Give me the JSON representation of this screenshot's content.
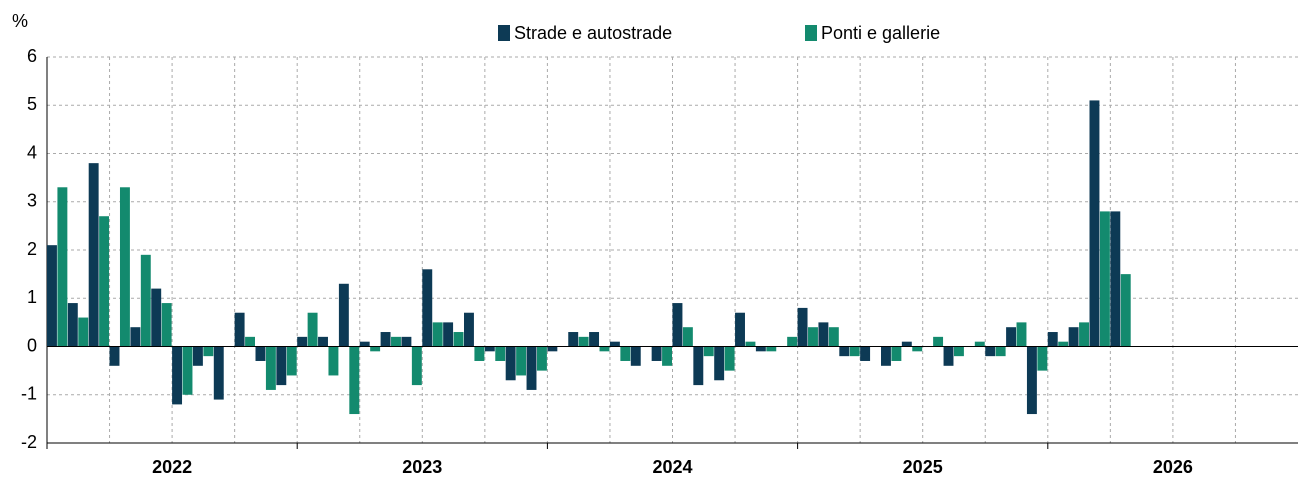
{
  "chart_data": {
    "type": "bar",
    "y_label": "%",
    "year_labels": [
      "2022",
      "2023",
      "2024",
      "2025",
      "2026"
    ],
    "categories": [
      null,
      null,
      null,
      null,
      null,
      null,
      null,
      null,
      null,
      null,
      null,
      null,
      null,
      null,
      null,
      null,
      null,
      null,
      null,
      null,
      null,
      null,
      null,
      null,
      null,
      null,
      null,
      null,
      null,
      null,
      null,
      null,
      null,
      null,
      null,
      null,
      null,
      null,
      null,
      null,
      null,
      null,
      null,
      null,
      null,
      null,
      null,
      null,
      null,
      null,
      null,
      null,
      null,
      null,
      null,
      null,
      null,
      null,
      null,
      null
    ],
    "series": [
      {
        "name": "Strade e autostrade",
        "color": "#0d3a55",
        "values": [
          2.1,
          0.9,
          3.8,
          -0.4,
          0.4,
          1.2,
          -1.2,
          -0.4,
          -1.1,
          0.7,
          -0.3,
          -0.8,
          0.2,
          0.2,
          1.3,
          0.1,
          0.3,
          0.2,
          1.6,
          0.5,
          0.7,
          -0.1,
          -0.7,
          -0.9,
          -0.1,
          0.3,
          0.3,
          0.1,
          -0.4,
          -0.3,
          0.9,
          -0.8,
          -0.7,
          0.7,
          -0.1,
          0,
          0.8,
          0.5,
          -0.2,
          -0.3,
          -0.4,
          0.1,
          0,
          -0.4,
          0,
          -0.2,
          0.4,
          -1.4,
          0.3,
          0.4,
          5.1,
          2.8,
          null,
          null,
          null,
          null,
          null,
          null,
          null,
          null
        ]
      },
      {
        "name": "Ponti e gallerie",
        "color": "#138a6e",
        "values": [
          3.3,
          0.6,
          2.7,
          3.3,
          1.9,
          0.9,
          -1.0,
          -0.2,
          0,
          0.2,
          -0.9,
          -0.6,
          0.7,
          -0.6,
          -1.4,
          -0.1,
          0.2,
          -0.8,
          0.5,
          0.3,
          -0.3,
          -0.3,
          -0.6,
          -0.5,
          0,
          0.2,
          -0.1,
          -0.3,
          0,
          -0.4,
          0.4,
          -0.2,
          -0.5,
          0.1,
          -0.1,
          0.2,
          0.4,
          0.4,
          -0.2,
          0,
          -0.3,
          -0.1,
          0.2,
          -0.2,
          0.1,
          -0.2,
          0.5,
          -0.5,
          0.1,
          0.5,
          2.8,
          1.5,
          null,
          null,
          null,
          null,
          null,
          null,
          null,
          null
        ]
      }
    ],
    "ylim": [
      -2,
      6
    ],
    "yticks": [
      -2,
      -1,
      0,
      1,
      2,
      3,
      4,
      5,
      6
    ],
    "grid": true
  }
}
